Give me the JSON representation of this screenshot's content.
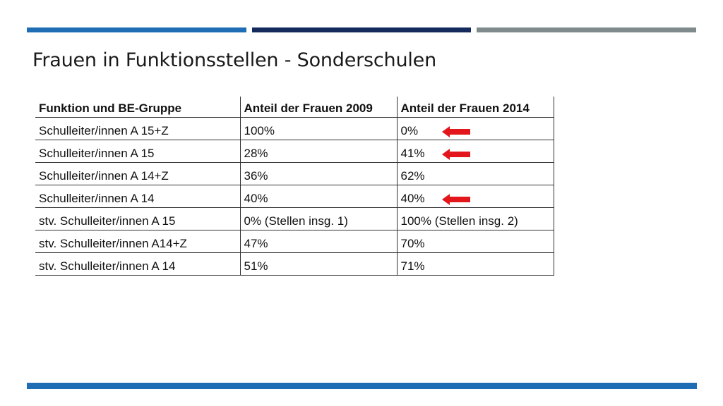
{
  "slide": {
    "title": "Frauen in Funktionsstellen - Sonderschulen"
  },
  "table": {
    "headers": [
      "Funktion und BE-Gruppe",
      "Anteil der Frauen 2009",
      "Anteil der Frauen 2014"
    ],
    "rows": [
      {
        "funktion": "Schulleiter/innen A 15+Z",
        "y2009": "100%",
        "y2014": "0%",
        "arrow": true
      },
      {
        "funktion": "Schulleiter/innen A 15",
        "y2009": "28%",
        "y2014": "41%",
        "arrow": true
      },
      {
        "funktion": "Schulleiter/innen A 14+Z",
        "y2009": "36%",
        "y2014": "62%",
        "arrow": false
      },
      {
        "funktion": "Schulleiter/innen A 14",
        "y2009": "40%",
        "y2014": "40%",
        "arrow": true
      },
      {
        "funktion": "stv. Schulleiter/innen A 15",
        "y2009": "0% (Stellen insg. 1)",
        "y2014": "100% (Stellen insg. 2)",
        "arrow": false
      },
      {
        "funktion": "stv. Schulleiter/innen A14+Z",
        "y2009": "47%",
        "y2014": "70%",
        "arrow": false
      },
      {
        "funktion": "stv. Schulleiter/innen A 14",
        "y2009": "51%",
        "y2014": "71%",
        "arrow": false
      }
    ],
    "arrow_icon": "left-arrow-icon",
    "arrow_color": "#e3161b"
  },
  "theme": {
    "bar_blue": "#1f6db5",
    "bar_navy": "#142a5c",
    "bar_gray": "#7f8a8c"
  }
}
